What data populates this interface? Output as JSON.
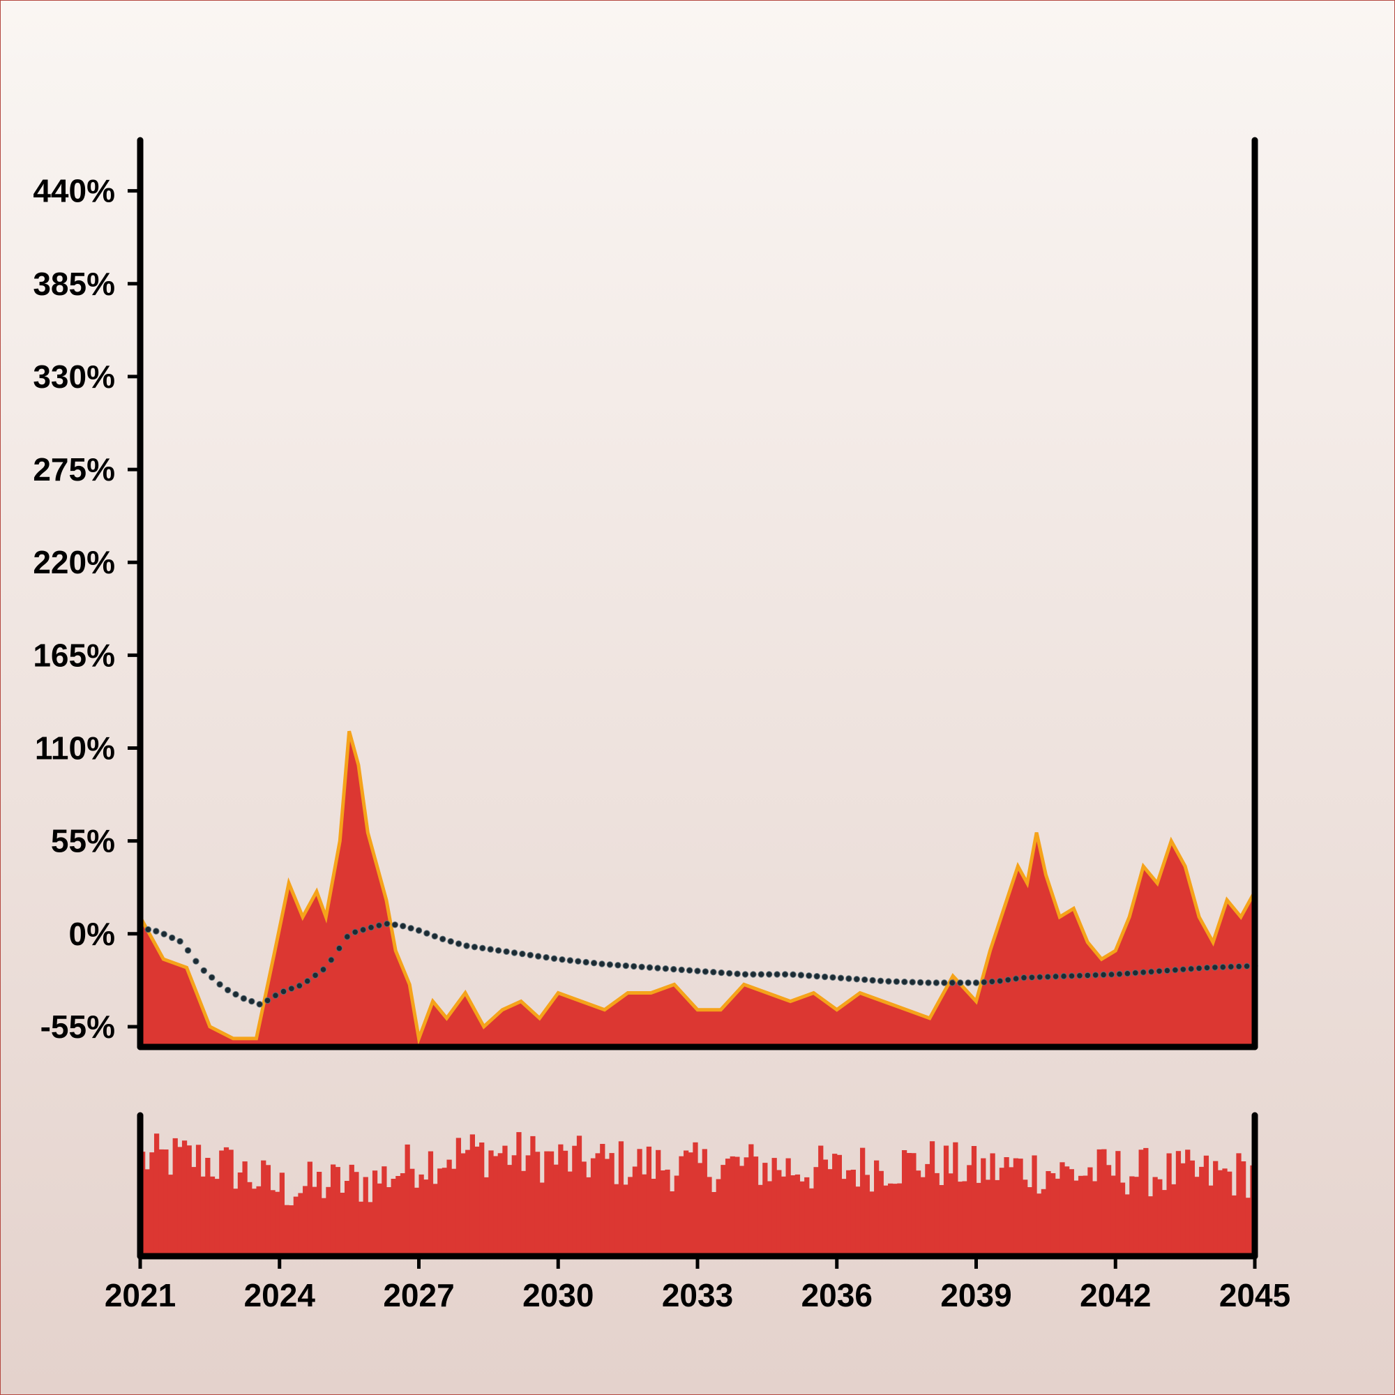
{
  "chart_data": [
    {
      "type": "area",
      "title": "",
      "xlabel": "",
      "ylabel": "",
      "x_range": [
        2021,
        2045
      ],
      "ylim": [
        -67,
        470
      ],
      "y_ticks": [
        -55,
        0,
        55,
        110,
        165,
        220,
        275,
        330,
        385,
        440
      ],
      "y_tick_labels": [
        "-55%",
        "0%",
        "55%",
        "110%",
        "165%",
        "220%",
        "275%",
        "330%",
        "385%",
        "440%"
      ],
      "grid": false,
      "legend": "none",
      "colors": {
        "fill": "#dc3732",
        "line": "#f5a31a",
        "trend": "#1c2b33",
        "frame": "#000000"
      },
      "series": [
        {
          "style": "filled area with orange outline",
          "x": [
            2021.0,
            2021.5,
            2022.0,
            2022.5,
            2023.0,
            2023.5,
            2023.9,
            2024.2,
            2024.5,
            2024.8,
            2025.0,
            2025.3,
            2025.5,
            2025.7,
            2025.9,
            2026.1,
            2026.3,
            2026.5,
            2026.8,
            2027.0,
            2027.3,
            2027.6,
            2028.0,
            2028.4,
            2028.8,
            2029.2,
            2029.6,
            2030.0,
            2030.5,
            2031.0,
            2031.5,
            2032.0,
            2032.5,
            2033.0,
            2033.5,
            2034.0,
            2034.5,
            2035.0,
            2035.5,
            2036.0,
            2036.5,
            2037.0,
            2037.5,
            2038.0,
            2038.5,
            2039.0,
            2039.3,
            2039.6,
            2039.9,
            2040.1,
            2040.3,
            2040.5,
            2040.8,
            2041.1,
            2041.4,
            2041.7,
            2042.0,
            2042.3,
            2042.6,
            2042.9,
            2043.2,
            2043.5,
            2043.8,
            2044.1,
            2044.4,
            2044.7,
            2045.0
          ],
          "y": [
            10,
            -15,
            -20,
            -55,
            -62,
            -62,
            -10,
            30,
            10,
            25,
            10,
            55,
            120,
            100,
            60,
            40,
            20,
            -10,
            -30,
            -62,
            -40,
            -50,
            -35,
            -55,
            -45,
            -40,
            -50,
            -35,
            -40,
            -45,
            -35,
            -35,
            -30,
            -45,
            -45,
            -30,
            -35,
            -40,
            -35,
            -45,
            -35,
            -40,
            -45,
            -50,
            -25,
            -40,
            -10,
            15,
            40,
            30,
            60,
            35,
            10,
            15,
            -5,
            -15,
            -10,
            10,
            40,
            30,
            55,
            40,
            10,
            -5,
            20,
            10,
            25
          ]
        },
        {
          "style": "dotted smoothed trend line",
          "x": [
            2021.0,
            2021.2,
            2021.5,
            2021.9,
            2022.3,
            2022.8,
            2023.2,
            2023.6,
            2024.0,
            2024.5,
            2025.0,
            2025.5,
            2026.0,
            2026.3,
            2026.6,
            2027.0,
            2027.5,
            2028.0,
            2029.0,
            2030.0,
            2031.0,
            2032.0,
            2033.0,
            2034.0,
            2035.0,
            2036.0,
            2037.0,
            2038.0,
            2039.0,
            2039.5,
            2040.0,
            2041.0,
            2042.0,
            2043.0,
            2044.0,
            2045.0
          ],
          "y": [
            0,
            3,
            0,
            -5,
            -20,
            -32,
            -38,
            -42,
            -35,
            -30,
            -20,
            0,
            4,
            6,
            5,
            2,
            -3,
            -7,
            -11,
            -15,
            -18,
            -20,
            -22,
            -24,
            -24,
            -26,
            -28,
            -29,
            -29,
            -28,
            -26,
            -25,
            -24,
            -22,
            -20,
            -19
          ]
        }
      ]
    },
    {
      "type": "bar",
      "title": "",
      "xlabel": "",
      "ylabel": "",
      "x_range": [
        2021,
        2045
      ],
      "x_ticks": [
        2021,
        2024,
        2027,
        2030,
        2033,
        2036,
        2039,
        2042,
        2045
      ],
      "x_tick_labels": [
        "2021",
        "2024",
        "2027",
        "2030",
        "2033",
        "2036",
        "2039",
        "2042",
        "2045"
      ],
      "y_axis_labels": "none",
      "ylim": [
        0,
        1
      ],
      "bar_count": 240,
      "level_profile": {
        "x": [
          2021,
          2022,
          2023,
          2024,
          2025,
          2026,
          2027,
          2028,
          2029,
          2030,
          2031,
          2032,
          2033,
          2034,
          2035,
          2036,
          2037,
          2038,
          2039,
          2040,
          2041,
          2042,
          2043,
          2044,
          2045
        ],
        "y": [
          0.72,
          0.74,
          0.66,
          0.5,
          0.54,
          0.56,
          0.7,
          0.78,
          0.76,
          0.72,
          0.7,
          0.68,
          0.66,
          0.68,
          0.66,
          0.64,
          0.68,
          0.7,
          0.64,
          0.66,
          0.62,
          0.64,
          0.62,
          0.6,
          0.62
        ]
      },
      "colors": {
        "bar": "#dc3732"
      }
    }
  ]
}
